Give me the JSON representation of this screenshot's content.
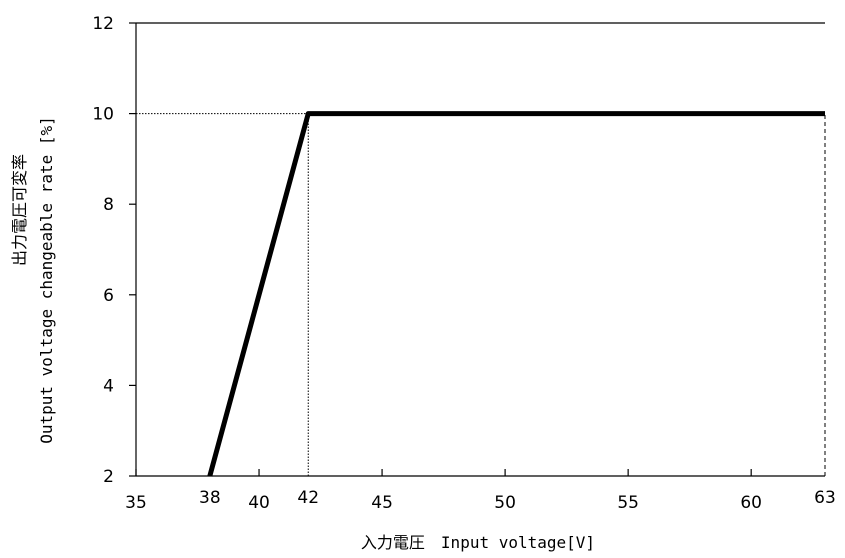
{
  "chart_data": {
    "type": "line",
    "x": [
      38,
      42,
      63
    ],
    "series": [
      {
        "values": [
          2,
          10,
          10
        ]
      }
    ],
    "xlim": [
      35,
      63
    ],
    "ylim": [
      2,
      12
    ],
    "x_ticks": [
      35,
      40,
      45,
      50,
      55,
      60
    ],
    "x_marked_ticks": [
      38,
      42,
      63
    ],
    "y_ticks": [
      2,
      4,
      6,
      8,
      10,
      12
    ],
    "xlabel": "入力電圧　Input voltage[V]",
    "ylabel_jp": "出力電圧可変率",
    "ylabel_en": "Output voltage changeable rate [%]",
    "reference_lines": [
      {
        "from": [
          35,
          10
        ],
        "to": [
          42,
          10
        ],
        "style": "dotted"
      },
      {
        "from": [
          42,
          2
        ],
        "to": [
          42,
          10
        ],
        "style": "dotted"
      },
      {
        "from": [
          63,
          2
        ],
        "to": [
          63,
          10
        ],
        "style": "dashed"
      }
    ],
    "grid": false,
    "line_color": "#000000"
  }
}
